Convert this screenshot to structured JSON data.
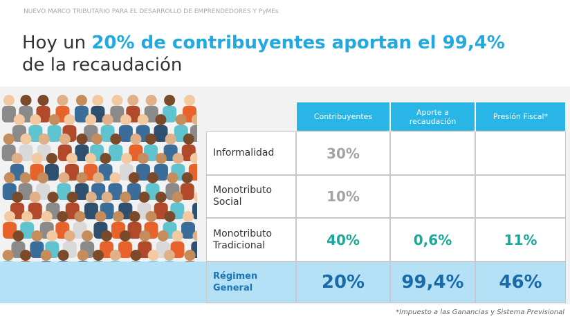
{
  "header": {
    "kicker": "NUEVO MARCO TRIBUTARIO PARA EL DESARROLLO DE EMPRENDEDORES Y PyMEs",
    "title": {
      "lead": "Hoy un ",
      "highlight": "20% de contribuyentes aportan el 99,4%",
      "rest": "de la recaudación"
    }
  },
  "table": {
    "columns": [
      "Contribuyentes",
      "Aporte a recaudación",
      "Presión Fiscal*"
    ],
    "rows": [
      {
        "label": "Informalidad",
        "cells": [
          "30%",
          null,
          null
        ]
      },
      {
        "label": "Monotributo Social",
        "cells": [
          "10%",
          null,
          null
        ]
      },
      {
        "label": "Monotributo Tradicional",
        "cells": [
          "40%",
          "0,6%",
          "11%"
        ]
      },
      {
        "label": "Régimen General",
        "cells": [
          "20%",
          "99,4%",
          "46%"
        ]
      }
    ]
  },
  "footnote": "*Impuesto a las Ganancias y Sistema Previsional"
}
